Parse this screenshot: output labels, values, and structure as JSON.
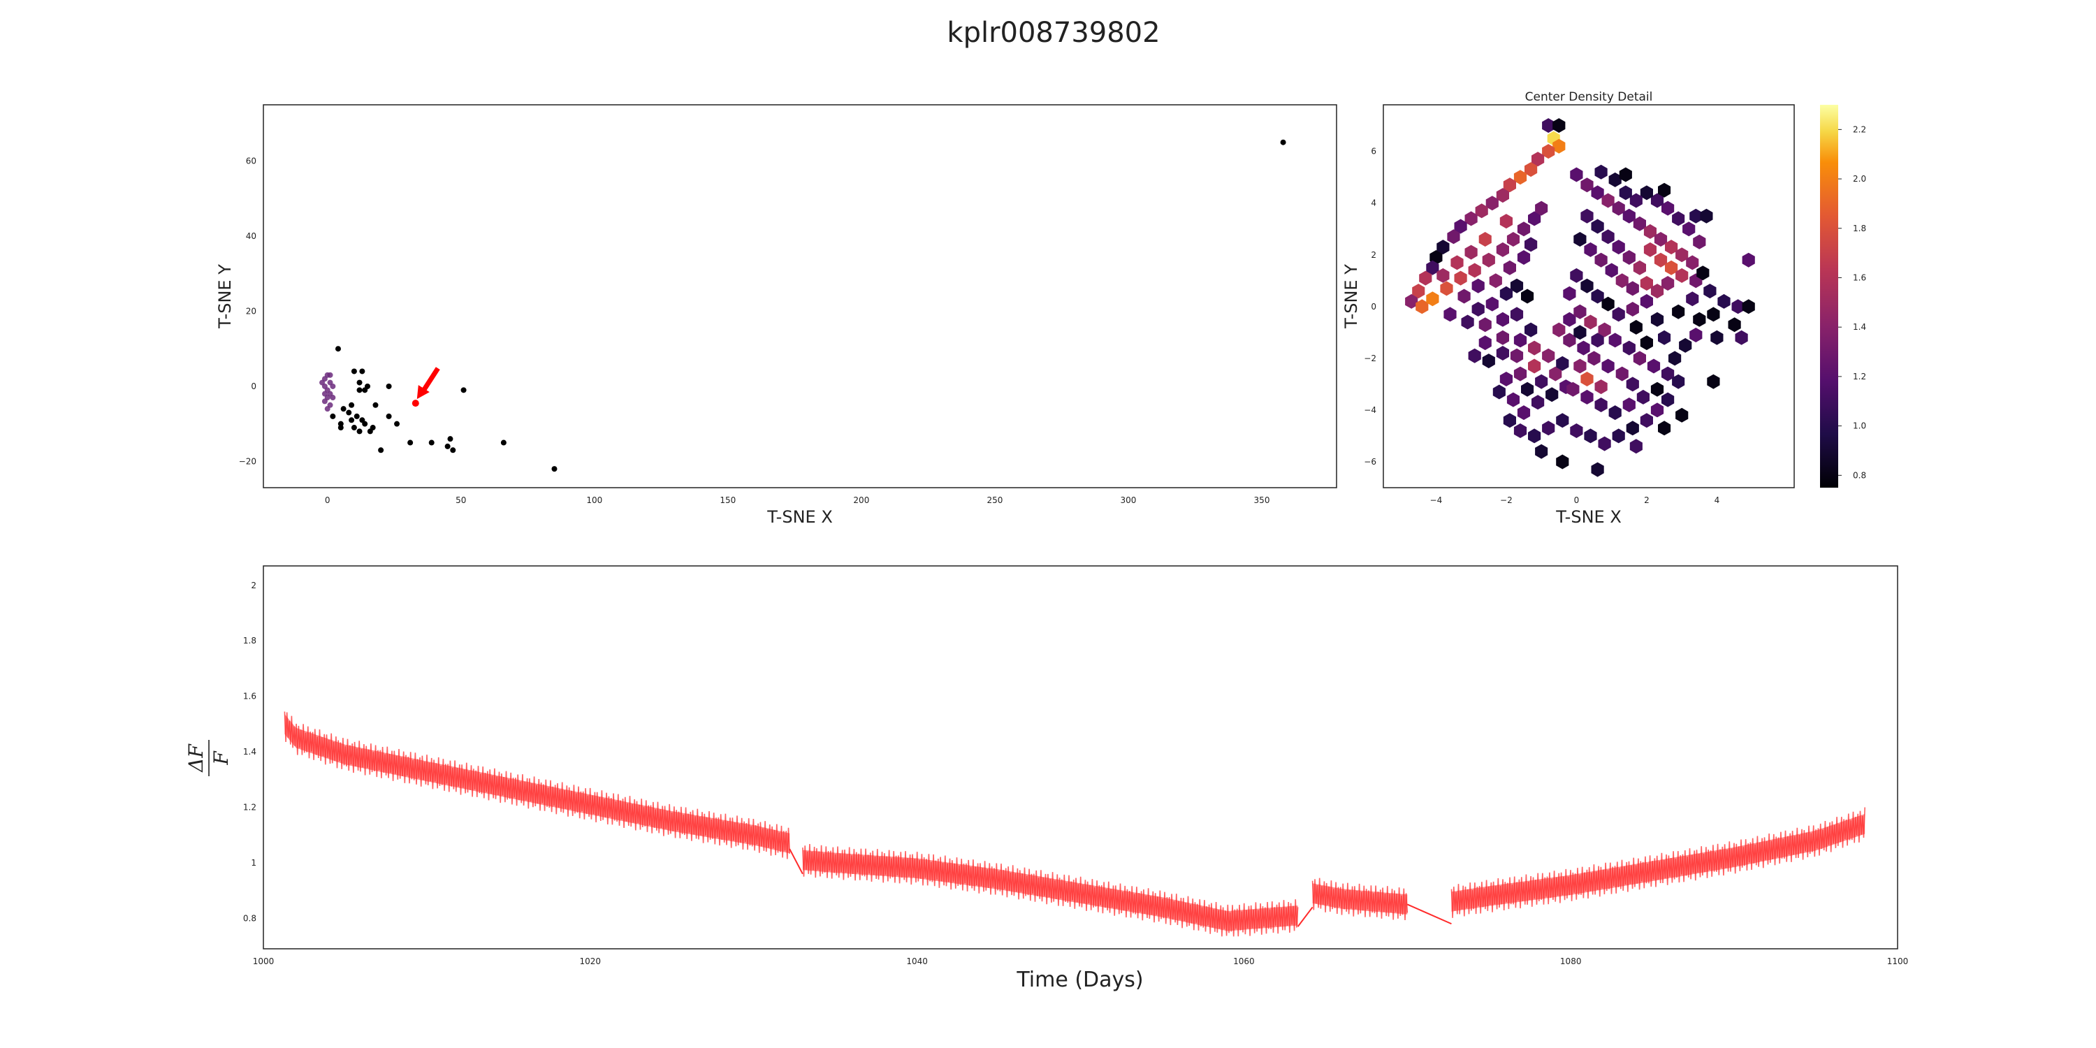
{
  "figure": {
    "title": "kplr008739802"
  },
  "chart_data": [
    {
      "type": "scatter",
      "id": "tsne-overview",
      "xlabel": "T-SNE X",
      "ylabel": "T-SNE Y",
      "xlim": [
        -24,
        378
      ],
      "ylim": [
        -27,
        75
      ],
      "xticks": [
        0,
        50,
        100,
        150,
        200,
        250,
        300,
        350
      ],
      "yticks": [
        -20,
        0,
        20,
        40,
        60
      ],
      "grid": false,
      "points": [
        [
          358,
          65
        ],
        [
          4,
          10
        ],
        [
          10,
          4
        ],
        [
          13,
          4
        ],
        [
          12,
          1
        ],
        [
          14,
          -1
        ],
        [
          15,
          0
        ],
        [
          12,
          -1
        ],
        [
          23,
          0
        ],
        [
          18,
          -5
        ],
        [
          9,
          -5
        ],
        [
          6,
          -6
        ],
        [
          8,
          -7
        ],
        [
          2,
          -8
        ],
        [
          23,
          -8
        ],
        [
          26,
          -10
        ],
        [
          11,
          -8
        ],
        [
          13,
          -9
        ],
        [
          9,
          -9
        ],
        [
          5,
          -10
        ],
        [
          10,
          -11
        ],
        [
          14,
          -10
        ],
        [
          17,
          -11
        ],
        [
          5,
          -11
        ],
        [
          16,
          -12
        ],
        [
          12,
          -12
        ],
        [
          31,
          -15
        ],
        [
          39,
          -15
        ],
        [
          46,
          -14
        ],
        [
          45,
          -16
        ],
        [
          47,
          -17
        ],
        [
          20,
          -17
        ],
        [
          66,
          -15
        ],
        [
          51,
          -1
        ],
        [
          85,
          -22
        ]
      ],
      "highlight": {
        "x": 33,
        "y": -4.5,
        "color": "#ff0000",
        "marker": "arrow"
      },
      "density_inset_color": "#6b2a7c"
    },
    {
      "type": "heatmap",
      "id": "center-density",
      "title": "Center Density Detail",
      "xlabel": "T-SNE X",
      "ylabel": "T-SNE Y",
      "xlim": [
        -5.5,
        6.2
      ],
      "ylim": [
        -7.0,
        7.8
      ],
      "xticks": [
        -4,
        -2,
        0,
        2,
        4
      ],
      "yticks": [
        -6,
        -4,
        -2,
        0,
        2,
        4,
        6
      ],
      "colormap": "inferno",
      "colorbar": {
        "min": 0.75,
        "max": 2.3,
        "ticks": [
          0.8,
          1.0,
          1.2,
          1.4,
          1.6,
          1.8,
          2.0,
          2.2
        ]
      },
      "hex_cells": [
        [
          -0.8,
          7.0,
          1.1
        ],
        [
          -0.5,
          7.0,
          0.8
        ],
        [
          -0.65,
          6.5,
          2.2
        ],
        [
          -0.5,
          6.2,
          2.0
        ],
        [
          -0.8,
          6.0,
          1.8
        ],
        [
          -1.1,
          5.7,
          1.6
        ],
        [
          -1.3,
          5.3,
          1.8
        ],
        [
          -1.6,
          5.0,
          1.9
        ],
        [
          -1.9,
          4.7,
          1.7
        ],
        [
          -2.1,
          4.3,
          1.5
        ],
        [
          -2.4,
          4.0,
          1.4
        ],
        [
          -2.7,
          3.7,
          1.5
        ],
        [
          -3.0,
          3.4,
          1.4
        ],
        [
          -3.3,
          3.1,
          1.2
        ],
        [
          -3.5,
          2.7,
          1.3
        ],
        [
          -3.8,
          2.3,
          0.9
        ],
        [
          -4.0,
          1.9,
          0.8
        ],
        [
          -4.1,
          1.5,
          1.1
        ],
        [
          -4.3,
          1.1,
          1.6
        ],
        [
          -4.5,
          0.6,
          1.7
        ],
        [
          -4.7,
          0.2,
          1.4
        ],
        [
          -4.4,
          0.0,
          1.9
        ],
        [
          -4.1,
          0.3,
          2.0
        ],
        [
          -3.7,
          0.7,
          1.8
        ],
        [
          -3.3,
          1.1,
          1.7
        ],
        [
          -2.9,
          1.4,
          1.6
        ],
        [
          -2.5,
          1.8,
          1.5
        ],
        [
          -2.1,
          2.2,
          1.4
        ],
        [
          -1.8,
          2.6,
          1.4
        ],
        [
          -1.5,
          3.0,
          1.3
        ],
        [
          -1.2,
          3.4,
          1.2
        ],
        [
          -1.0,
          3.8,
          1.3
        ],
        [
          -2.0,
          3.3,
          1.6
        ],
        [
          -2.6,
          2.6,
          1.7
        ],
        [
          -3.0,
          2.1,
          1.5
        ],
        [
          -3.4,
          1.7,
          1.6
        ],
        [
          -3.8,
          1.2,
          1.5
        ],
        [
          -3.2,
          0.4,
          1.3
        ],
        [
          -2.8,
          0.8,
          1.2
        ],
        [
          -2.3,
          1.0,
          1.4
        ],
        [
          -1.9,
          1.5,
          1.3
        ],
        [
          -1.5,
          1.9,
          1.2
        ],
        [
          -1.3,
          2.4,
          1.1
        ],
        [
          -1.7,
          0.8,
          0.9
        ],
        [
          -2.0,
          0.5,
          1.0
        ],
        [
          -1.4,
          0.4,
          0.8
        ],
        [
          -2.4,
          0.1,
          1.2
        ],
        [
          -2.8,
          -0.1,
          1.1
        ],
        [
          -3.6,
          -0.3,
          1.2
        ],
        [
          -3.1,
          -0.6,
          1.1
        ],
        [
          -2.6,
          -0.7,
          1.3
        ],
        [
          -2.1,
          -0.5,
          1.2
        ],
        [
          -1.7,
          -0.3,
          1.1
        ],
        [
          -1.3,
          -0.9,
          1.0
        ],
        [
          -1.6,
          -1.3,
          1.2
        ],
        [
          -2.1,
          -1.2,
          1.3
        ],
        [
          -2.6,
          -1.4,
          1.2
        ],
        [
          -2.9,
          -1.9,
          1.1
        ],
        [
          -2.5,
          -2.1,
          0.9
        ],
        [
          -2.1,
          -1.8,
          1.1
        ],
        [
          -1.7,
          -1.9,
          1.3
        ],
        [
          -1.2,
          -1.6,
          1.5
        ],
        [
          -0.8,
          -1.9,
          1.4
        ],
        [
          -1.2,
          -2.3,
          1.6
        ],
        [
          -1.6,
          -2.6,
          1.3
        ],
        [
          -2.0,
          -2.8,
          1.2
        ],
        [
          -2.2,
          -3.3,
          1.0
        ],
        [
          -1.8,
          -3.6,
          1.2
        ],
        [
          -1.4,
          -3.2,
          0.9
        ],
        [
          -1.0,
          -2.9,
          1.1
        ],
        [
          -0.6,
          -2.6,
          1.4
        ],
        [
          -0.3,
          -3.1,
          1.2
        ],
        [
          -0.7,
          -3.4,
          0.9
        ],
        [
          -1.1,
          -3.7,
          1.1
        ],
        [
          -1.5,
          -4.1,
          1.2
        ],
        [
          -1.9,
          -4.4,
          1.0
        ],
        [
          -1.6,
          -4.8,
          1.1
        ],
        [
          -1.2,
          -5.0,
          1.0
        ],
        [
          -0.8,
          -4.7,
          1.1
        ],
        [
          -0.4,
          -4.4,
          1.0
        ],
        [
          0.0,
          -4.8,
          1.1
        ],
        [
          0.4,
          -5.0,
          1.0
        ],
        [
          0.8,
          -5.3,
          1.1
        ],
        [
          1.2,
          -5.0,
          1.0
        ],
        [
          1.6,
          -4.7,
          0.9
        ],
        [
          2.0,
          -4.4,
          1.1
        ],
        [
          2.3,
          -4.0,
          1.2
        ],
        [
          2.6,
          -3.6,
          1.0
        ],
        [
          2.3,
          -3.2,
          0.8
        ],
        [
          1.9,
          -3.5,
          1.1
        ],
        [
          1.5,
          -3.8,
          1.2
        ],
        [
          1.1,
          -4.1,
          1.0
        ],
        [
          0.7,
          -3.8,
          1.1
        ],
        [
          0.3,
          -3.5,
          1.2
        ],
        [
          -0.1,
          -3.2,
          1.3
        ],
        [
          0.3,
          -2.8,
          1.8
        ],
        [
          0.7,
          -3.1,
          1.5
        ],
        [
          0.1,
          -2.3,
          1.4
        ],
        [
          0.5,
          -2.0,
          1.3
        ],
        [
          0.2,
          -1.6,
          1.2
        ],
        [
          -0.2,
          -1.3,
          1.3
        ],
        [
          -0.5,
          -0.9,
          1.4
        ],
        [
          -0.2,
          -0.5,
          1.2
        ],
        [
          0.1,
          -0.2,
          1.3
        ],
        [
          0.4,
          -0.6,
          1.5
        ],
        [
          0.8,
          -0.9,
          1.4
        ],
        [
          1.1,
          -1.3,
          1.2
        ],
        [
          1.5,
          -1.6,
          1.1
        ],
        [
          1.8,
          -2.0,
          1.3
        ],
        [
          2.2,
          -2.3,
          1.2
        ],
        [
          2.6,
          -2.6,
          1.1
        ],
        [
          2.9,
          -2.9,
          1.0
        ],
        [
          -0.4,
          -6.0,
          0.8
        ],
        [
          0.6,
          -6.3,
          0.9
        ],
        [
          -1.0,
          -5.6,
          0.9
        ],
        [
          1.7,
          -5.4,
          1.1
        ],
        [
          2.5,
          -4.7,
          0.8
        ],
        [
          3.0,
          -4.2,
          0.8
        ],
        [
          2.8,
          -2.0,
          0.9
        ],
        [
          0.0,
          5.1,
          1.2
        ],
        [
          0.3,
          4.7,
          1.3
        ],
        [
          0.6,
          4.4,
          1.2
        ],
        [
          0.9,
          4.1,
          1.4
        ],
        [
          1.2,
          3.8,
          1.3
        ],
        [
          1.5,
          3.5,
          1.2
        ],
        [
          1.8,
          3.2,
          1.3
        ],
        [
          2.1,
          2.9,
          1.5
        ],
        [
          2.4,
          2.6,
          1.4
        ],
        [
          2.7,
          2.3,
          1.6
        ],
        [
          3.0,
          2.0,
          1.5
        ],
        [
          3.3,
          1.7,
          1.4
        ],
        [
          3.5,
          2.5,
          1.3
        ],
        [
          3.2,
          3.0,
          1.2
        ],
        [
          2.9,
          3.4,
          1.1
        ],
        [
          2.6,
          3.8,
          1.2
        ],
        [
          2.3,
          4.1,
          1.1
        ],
        [
          2.0,
          4.4,
          0.9
        ],
        [
          1.7,
          4.1,
          1.1
        ],
        [
          1.4,
          4.4,
          1.0
        ],
        [
          1.1,
          4.9,
          0.9
        ],
        [
          0.7,
          5.2,
          1.0
        ],
        [
          1.4,
          5.1,
          0.8
        ],
        [
          2.5,
          4.5,
          0.8
        ],
        [
          3.4,
          3.5,
          1.0
        ],
        [
          3.7,
          3.5,
          0.9
        ],
        [
          2.1,
          2.2,
          1.6
        ],
        [
          2.4,
          1.8,
          1.7
        ],
        [
          2.7,
          1.5,
          1.8
        ],
        [
          1.8,
          1.5,
          1.5
        ],
        [
          1.5,
          1.9,
          1.3
        ],
        [
          1.2,
          2.3,
          1.2
        ],
        [
          0.9,
          2.7,
          1.1
        ],
        [
          0.6,
          3.1,
          1.0
        ],
        [
          0.3,
          3.5,
          1.1
        ],
        [
          0.1,
          2.6,
          0.9
        ],
        [
          0.4,
          2.2,
          1.2
        ],
        [
          0.7,
          1.8,
          1.3
        ],
        [
          1.0,
          1.4,
          1.2
        ],
        [
          1.3,
          1.0,
          1.4
        ],
        [
          1.6,
          0.7,
          1.3
        ],
        [
          2.0,
          0.9,
          1.6
        ],
        [
          2.3,
          0.6,
          1.5
        ],
        [
          2.6,
          0.9,
          1.4
        ],
        [
          3.0,
          1.2,
          1.6
        ],
        [
          3.4,
          1.0,
          1.3
        ],
        [
          3.8,
          0.6,
          1.0
        ],
        [
          0.0,
          1.2,
          1.1
        ],
        [
          0.3,
          0.8,
          0.9
        ],
        [
          0.6,
          0.4,
          1.0
        ],
        [
          0.9,
          0.1,
          0.8
        ],
        [
          1.2,
          -0.3,
          1.1
        ],
        [
          1.6,
          -0.1,
          1.3
        ],
        [
          2.0,
          0.2,
          1.2
        ],
        [
          -0.2,
          0.5,
          1.2
        ],
        [
          3.3,
          0.3,
          1.1
        ],
        [
          2.9,
          -0.2,
          0.8
        ],
        [
          2.3,
          -0.5,
          0.9
        ],
        [
          1.7,
          -0.8,
          0.8
        ],
        [
          0.6,
          -1.3,
          1.1
        ],
        [
          0.1,
          -1.0,
          0.9
        ],
        [
          -0.4,
          -2.2,
          1.0
        ],
        [
          0.9,
          -2.3,
          1.2
        ],
        [
          1.3,
          -2.6,
          1.3
        ],
        [
          1.6,
          -3.0,
          1.1
        ],
        [
          3.5,
          -0.5,
          0.8
        ],
        [
          3.9,
          -0.3,
          0.8
        ],
        [
          4.6,
          0.0,
          1.1
        ],
        [
          4.9,
          0.0,
          0.8
        ],
        [
          4.5,
          -0.7,
          0.8
        ],
        [
          4.0,
          -1.2,
          0.9
        ],
        [
          3.4,
          -1.1,
          1.2
        ],
        [
          3.9,
          -2.9,
          0.8
        ],
        [
          4.2,
          0.2,
          1.0
        ],
        [
          4.7,
          -1.2,
          1.1
        ],
        [
          4.9,
          1.8,
          1.2
        ],
        [
          3.6,
          1.3,
          0.8
        ],
        [
          3.1,
          -1.5,
          0.9
        ],
        [
          2.5,
          -1.2,
          1.0
        ],
        [
          2.0,
          -1.4,
          0.8
        ]
      ]
    },
    {
      "type": "line",
      "id": "light-curve",
      "xlabel": "Time (Days)",
      "ylabel": "ΔF / F",
      "xlim": [
        1000,
        1100
      ],
      "ylim": [
        0.69,
        2.07
      ],
      "xticks": [
        1000,
        1020,
        1040,
        1060,
        1080,
        1100
      ],
      "yticks": [
        0.8,
        1.0,
        1.2,
        1.4,
        1.6,
        1.8,
        2.0
      ],
      "color": "#ff2a2a",
      "segments": [
        {
          "t": [
            1001.3,
            1002,
            1005,
            1010,
            1015,
            1020,
            1025,
            1030,
            1032.2
          ],
          "f": [
            1.5,
            1.45,
            1.39,
            1.33,
            1.27,
            1.21,
            1.15,
            1.1,
            1.07
          ]
        },
        {
          "t": [
            1033.0,
            1035,
            1040,
            1045,
            1050,
            1055,
            1059,
            1063.3
          ],
          "f": [
            1.01,
            1.0,
            0.98,
            0.94,
            0.89,
            0.84,
            0.79,
            0.81
          ]
        },
        {
          "t": [
            1064.2,
            1066,
            1068,
            1070.0
          ],
          "f": [
            0.89,
            0.87,
            0.86,
            0.85
          ]
        },
        {
          "t": [
            1072.7,
            1075,
            1080,
            1085,
            1090,
            1095,
            1098
          ],
          "f": [
            0.86,
            0.88,
            0.92,
            0.97,
            1.02,
            1.08,
            1.14
          ]
        }
      ],
      "gap_links": [
        {
          "t": [
            1032.2,
            1033.0
          ],
          "f": [
            1.05,
            0.96
          ]
        },
        {
          "t": [
            1063.3,
            1064.2
          ],
          "f": [
            0.77,
            0.84
          ]
        },
        {
          "t": [
            1070.0,
            1072.7
          ],
          "f": [
            0.85,
            0.78
          ]
        }
      ],
      "scatter_amplitude": 0.12
    }
  ]
}
